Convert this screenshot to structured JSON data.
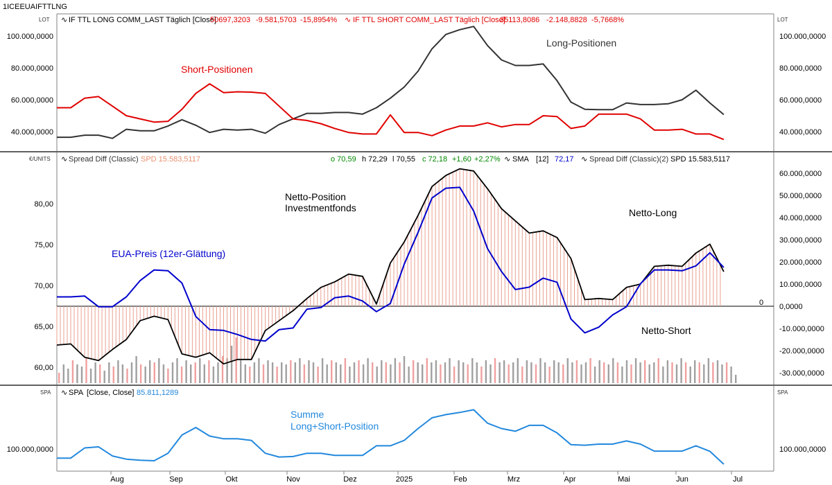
{
  "symbol": "1ICEEUAIFTTLNG",
  "colors": {
    "long": "#333333",
    "short": "#e00000",
    "spread_line": "#000000",
    "sma": "#0000cc",
    "spread_bar": "#e8a090",
    "volume": "#a0a0a0",
    "volume_pink": "#f0a0a0",
    "spa": "#2288dd",
    "axis": "#808080",
    "legend_up": "#008800"
  },
  "panels": {
    "top": {
      "unit": "LOT",
      "legend": [
        {
          "text": "IF TTL LONG COMM_LAST Täglich [Close]",
          "color": "#000000"
        },
        {
          "text": "50697,3203",
          "color": "#e00000"
        },
        {
          "text": "-9.581,5703",
          "color": "#e00000"
        },
        {
          "text": "-15,8954%",
          "color": "#e00000"
        },
        {
          "text": "IF TTL SHORT COMM_LAST Täglich [Close]",
          "color": "#e00000"
        },
        {
          "text": "35113,8086",
          "color": "#e00000"
        },
        {
          "text": "-2.148,8828",
          "color": "#e00000"
        },
        {
          "text": "-5,7668%",
          "color": "#e00000"
        }
      ],
      "y_ticks": [
        "100.000,0000",
        "80.000,0000",
        "60.000,0000",
        "40.000,0000"
      ],
      "annotations": {
        "short": "Short-Positionen",
        "long": "Long-Positionen"
      }
    },
    "middle": {
      "unit": "€/UNITS",
      "legend": {
        "name": "Spread Diff (Classic)",
        "spd": "SPD 15.583,5117",
        "o": "o 70,59",
        "h": "h 72,29",
        "l": "l 70,55",
        "c": "c 72,18",
        "chg": "+1,60",
        "pct": "+2,27%",
        "sma": "SMA",
        "sma_period": "[12]",
        "sma_val": "72,17",
        "name2": "Spread Diff (Classic)(2)",
        "spd2": "SPD 15.583,5117"
      },
      "left_ticks": [
        "80,00",
        "75,00",
        "70,00",
        "65,00",
        "60,00"
      ],
      "right_ticks": [
        "60.000,0000",
        "50.000,0000",
        "40.000,0000",
        "30.000,0000",
        "20.000,0000",
        "10.000,0000",
        "0,0000",
        "-10.000,0000",
        "-20.000,0000",
        "-30.000,0000"
      ],
      "zero_label": "0",
      "annotations": {
        "netto1": "Netto-Position",
        "netto2": "Investmentfonds",
        "eua": "EUA-Preis (12er-Glättung)",
        "long": "Netto-Long",
        "short": "Netto-Short"
      }
    },
    "bottom": {
      "unit": "SPA",
      "legend": {
        "name": "SPA",
        "params": "[Close, Close]",
        "value": "85.811,1289"
      },
      "y_tick": "100.000,0000",
      "annotations": {
        "line1": "Summe",
        "line2": "Long+Short-Position"
      }
    }
  },
  "x_axis": {
    "labels": [
      "Aug",
      "Sep",
      "Okt",
      "Nov",
      "Dez",
      "2025",
      "Feb",
      "Mrz",
      "Apr",
      "Mai",
      "Jun",
      "Jul"
    ]
  },
  "chart_data": {
    "type": "line",
    "x_start": "2024-07-08",
    "x_step": "1 week",
    "series": [
      {
        "name": "Long-Positionen",
        "panel": "top",
        "unit": "LOT",
        "values": [
          36500,
          36500,
          37800,
          37800,
          35800,
          41500,
          40500,
          40500,
          43500,
          47500,
          44000,
          39500,
          41500,
          41000,
          41500,
          39000,
          44500,
          48000,
          51500,
          51500,
          52000,
          52000,
          51000,
          55000,
          61000,
          68000,
          78000,
          92000,
          101000,
          104000,
          106000,
          94000,
          85000,
          81500,
          81500,
          82500,
          72000,
          58500,
          54000,
          53800,
          53800,
          58000,
          57000,
          57000,
          57500,
          60000,
          66000,
          58000,
          50700
        ]
      },
      {
        "name": "Short-Positionen",
        "panel": "top",
        "unit": "LOT",
        "values": [
          55000,
          55000,
          61000,
          62000,
          56000,
          50000,
          48000,
          46000,
          46500,
          54000,
          64000,
          70000,
          64500,
          65000,
          64800,
          64000,
          56000,
          48000,
          47000,
          45000,
          42000,
          39500,
          38500,
          38500,
          50500,
          39500,
          39500,
          37500,
          41000,
          43500,
          43500,
          45500,
          43000,
          44500,
          44500,
          50000,
          49500,
          42000,
          43500,
          51000,
          51000,
          51000,
          48000,
          41000,
          41000,
          41500,
          38500,
          38500,
          35100
        ]
      },
      {
        "name": "Spread Diff (Classic)",
        "panel": "middle",
        "unit": "UNITS",
        "values": [
          -17500,
          -17000,
          -23000,
          -24500,
          -19500,
          -15000,
          -6500,
          -4500,
          -6000,
          -21500,
          -23000,
          -21000,
          -26000,
          -24000,
          -24000,
          -11000,
          -6500,
          -2000,
          3500,
          8500,
          11000,
          14500,
          13500,
          1000,
          19500,
          29000,
          41000,
          54000,
          59000,
          62000,
          61000,
          53000,
          44000,
          38500,
          33000,
          34000,
          31000,
          21500,
          3000,
          3500,
          3000,
          8500,
          10000,
          18000,
          18500,
          18000,
          24000,
          28000,
          15600
        ]
      },
      {
        "name": "SMA [12]",
        "panel": "middle",
        "unit": "EUR",
        "values": [
          68.6,
          68.6,
          68.7,
          67.4,
          67.4,
          68.6,
          70.6,
          71.9,
          71.8,
          70.3,
          66.2,
          64.6,
          64.5,
          64.0,
          63.4,
          63.2,
          64.6,
          64.8,
          67.1,
          67.3,
          68.5,
          68.7,
          68.1,
          66.8,
          67.8,
          72.6,
          76.5,
          80.7,
          81.9,
          82.0,
          79.1,
          74.5,
          71.7,
          69.5,
          69.8,
          70.9,
          70.4,
          65.9,
          64.2,
          64.9,
          66.4,
          67.4,
          70.2,
          71.9,
          71.9,
          71.8,
          72.4,
          74.0,
          72.2
        ]
      },
      {
        "name": "SPA",
        "panel": "bottom",
        "unit": "LOT",
        "values": [
          91500,
          91500,
          101000,
          102000,
          93500,
          90500,
          89500,
          89000,
          96000,
          113000,
          120000,
          112000,
          109500,
          109500,
          108000,
          96000,
          92500,
          93000,
          96000,
          96000,
          94000,
          94000,
          94000,
          103000,
          103000,
          108000,
          119000,
          129000,
          132000,
          134000,
          136500,
          124000,
          119000,
          116500,
          122000,
          122000,
          115000,
          104000,
          103500,
          104500,
          104500,
          107500,
          104500,
          98000,
          98000,
          98000,
          103000,
          97800,
          85800
        ]
      },
      {
        "name": "Volume",
        "panel": "middle",
        "unit": "",
        "values": [
          5,
          9,
          7,
          11,
          9,
          8,
          12,
          7,
          10,
          9,
          6,
          10,
          8,
          11,
          9,
          7,
          10,
          13,
          9,
          8,
          11,
          10,
          12,
          9,
          7,
          10,
          12,
          8,
          11,
          9,
          10,
          12,
          9,
          11,
          8,
          10,
          13,
          12,
          18,
          22,
          11,
          9,
          8,
          10,
          12,
          9,
          11,
          10,
          8,
          10,
          9,
          11,
          10,
          12,
          9,
          11,
          10,
          8,
          12,
          9,
          11,
          10,
          9,
          12,
          8,
          10,
          11,
          9,
          12,
          10,
          8,
          11,
          10,
          9,
          12,
          10,
          13,
          8,
          11,
          10,
          9,
          12,
          10,
          11,
          9,
          10,
          12,
          8,
          11,
          10,
          9,
          12,
          10,
          8,
          11,
          9,
          12,
          10,
          11,
          9,
          10,
          12,
          8,
          11,
          10,
          9,
          12,
          10,
          8,
          11,
          10,
          9,
          12,
          10,
          11,
          9,
          10,
          12,
          8,
          11,
          10,
          9,
          12,
          10,
          8,
          11,
          9,
          12,
          10,
          11,
          9,
          10,
          12,
          8,
          11,
          10,
          9,
          12,
          10,
          8,
          11,
          10,
          9,
          12,
          10,
          11,
          9,
          10,
          8,
          4
        ]
      }
    ]
  }
}
